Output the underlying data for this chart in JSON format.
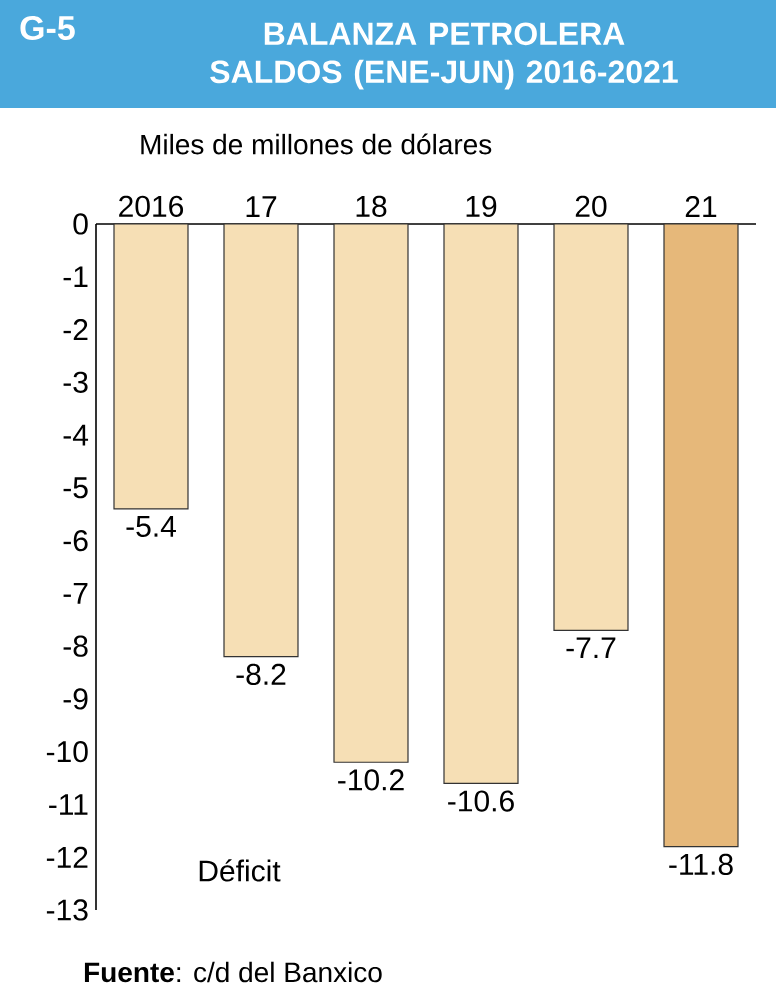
{
  "chart_data": {
    "type": "bar",
    "title": "BALANZA PETROLERA SALDOS (ENE-JUN) 2016-2021",
    "ylabel": "Miles de millones de dólares",
    "annotations": [
      "G-5",
      "Déficit",
      "**Fuente**: c/d del Banxico"
    ],
    "categories": [
      "2016",
      "17",
      "18",
      "19",
      "20",
      "21"
    ],
    "values": [
      -5.4,
      -8.2,
      -10.2,
      -10.6,
      -7.7,
      -11.8
    ],
    "colors": [
      "#f6dfb5",
      "#f6dfb5",
      "#f6dfb5",
      "#f6dfb5",
      "#f6dfb5",
      "#e6b87a"
    ],
    "ylim": [
      -13,
      0
    ],
    "yticks": [
      0,
      -1,
      -2,
      -3,
      -4,
      -5,
      -6,
      -7,
      -8,
      -9,
      -10,
      -11,
      -12,
      -13
    ],
    "data_labels": true,
    "grid": false
  }
}
